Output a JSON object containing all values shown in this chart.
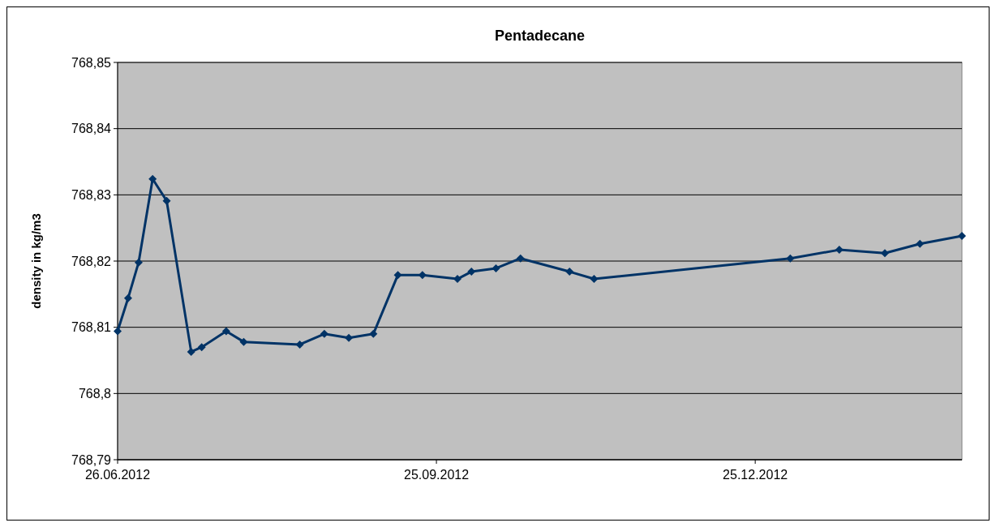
{
  "chart_data": {
    "type": "line",
    "title": "Pentadecane",
    "ylabel": "density in kg/m3",
    "x": [
      "2012-06-26",
      "2012-06-29",
      "2012-07-02",
      "2012-07-06",
      "2012-07-10",
      "2012-07-17",
      "2012-07-20",
      "2012-07-27",
      "2012-08-01",
      "2012-08-17",
      "2012-08-24",
      "2012-08-31",
      "2012-09-07",
      "2012-09-14",
      "2012-09-21",
      "2012-10-01",
      "2012-10-05",
      "2012-10-12",
      "2012-10-19",
      "2012-11-02",
      "2012-11-09",
      "2013-01-04",
      "2013-01-18",
      "2013-01-31",
      "2013-02-10",
      "2013-02-22"
    ],
    "series": [
      {
        "color": "#003366",
        "values": [
          768.8094,
          768.8144,
          768.8198,
          768.8324,
          768.8291,
          768.8063,
          768.807,
          768.8094,
          768.8078,
          768.8074,
          768.809,
          768.8084,
          768.809,
          768.8179,
          768.8179,
          768.8173,
          768.8184,
          768.8189,
          768.8204,
          768.8184,
          768.8173,
          768.8204,
          768.8217,
          768.8212,
          768.8226,
          768.8238
        ]
      }
    ],
    "marker": "diamond",
    "xlim": [
      "2012-06-26",
      "2013-02-22"
    ],
    "xticks": [
      {
        "value": "2012-06-26",
        "label": "26.06.2012"
      },
      {
        "value": "2012-09-25",
        "label": "25.09.2012"
      },
      {
        "value": "2012-12-25",
        "label": "25.12.2012"
      }
    ],
    "ylim": [
      768.79,
      768.85
    ],
    "yticks": [
      {
        "value": 768.79,
        "label": "768,79"
      },
      {
        "value": 768.8,
        "label": "768,8"
      },
      {
        "value": 768.81,
        "label": "768,81"
      },
      {
        "value": 768.82,
        "label": "768,82"
      },
      {
        "value": 768.83,
        "label": "768,83"
      },
      {
        "value": 768.84,
        "label": "768,84"
      },
      {
        "value": 768.85,
        "label": "768,85"
      }
    ],
    "grid": "y"
  }
}
